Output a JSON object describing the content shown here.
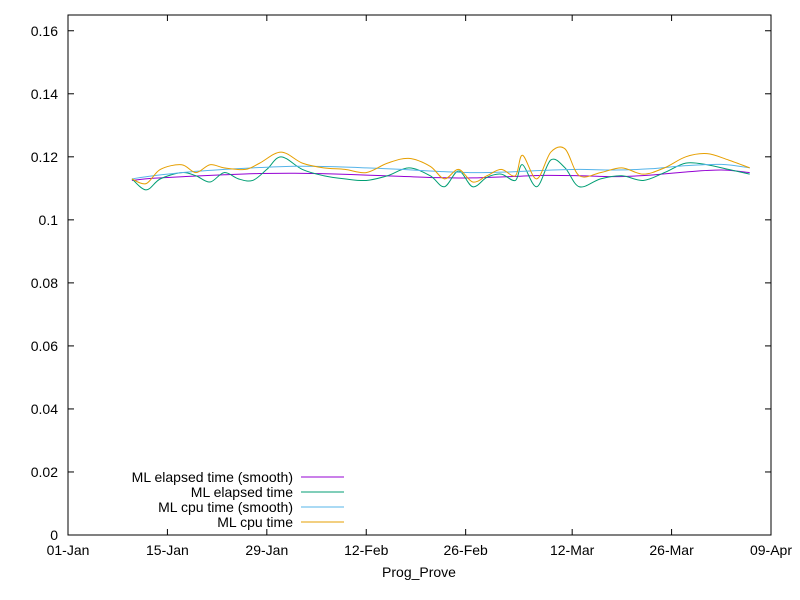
{
  "chart_data": {
    "type": "line",
    "xlabel": "Prog_Prove",
    "ylabel": "",
    "ylim": [
      0,
      0.165
    ],
    "y_ticks": [
      0,
      0.02,
      0.04,
      0.06,
      0.08,
      0.1,
      0.12,
      0.14,
      0.16
    ],
    "y_tick_labels": [
      "0",
      "0.02",
      "0.04",
      "0.06",
      "0.08",
      "0.1",
      "0.12",
      "0.14",
      "0.16"
    ],
    "xlim": [
      "2024-01-01",
      "2024-04-09"
    ],
    "x_ticks": [
      "2024-01-01",
      "2024-01-15",
      "2024-01-29",
      "2024-02-12",
      "2024-02-26",
      "2024-03-12",
      "2024-03-26",
      "2024-04-09"
    ],
    "x_tick_labels": [
      "01-Jan",
      "15-Jan",
      "29-Jan",
      "12-Feb",
      "26-Feb",
      "12-Mar",
      "26-Mar",
      "09-Apr"
    ],
    "grid": false,
    "legend_position": "bottom-left",
    "series": [
      {
        "name": "ML elapsed time (smooth)",
        "color": "#9400d3",
        "x": [
          "2024-01-10",
          "2024-01-13",
          "2024-01-18",
          "2024-01-23",
          "2024-01-28",
          "2024-02-02",
          "2024-02-07",
          "2024-02-12",
          "2024-02-17",
          "2024-02-22",
          "2024-02-27",
          "2024-03-03",
          "2024-03-08",
          "2024-03-13",
          "2024-03-18",
          "2024-03-23",
          "2024-03-28",
          "2024-04-02",
          "2024-04-06"
        ],
        "y": [
          0.1125,
          0.1132,
          0.1138,
          0.1143,
          0.1147,
          0.1148,
          0.1146,
          0.1142,
          0.1138,
          0.1134,
          0.1133,
          0.1137,
          0.1141,
          0.114,
          0.1137,
          0.1142,
          0.1152,
          0.1158,
          0.115
        ]
      },
      {
        "name": "ML elapsed time",
        "color": "#009e73",
        "x": [
          "2024-01-10",
          "2024-01-12",
          "2024-01-14",
          "2024-01-17",
          "2024-01-19",
          "2024-01-21",
          "2024-01-23",
          "2024-01-25",
          "2024-01-27",
          "2024-01-29",
          "2024-01-31",
          "2024-02-03",
          "2024-02-06",
          "2024-02-09",
          "2024-02-12",
          "2024-02-15",
          "2024-02-18",
          "2024-02-21",
          "2024-02-23",
          "2024-02-25",
          "2024-02-27",
          "2024-02-29",
          "2024-03-02",
          "2024-03-04",
          "2024-03-05",
          "2024-03-07",
          "2024-03-09",
          "2024-03-11",
          "2024-03-13",
          "2024-03-16",
          "2024-03-19",
          "2024-03-22",
          "2024-03-25",
          "2024-03-28",
          "2024-03-31",
          "2024-04-03",
          "2024-04-06"
        ],
        "y": [
          0.113,
          0.1095,
          0.113,
          0.115,
          0.114,
          0.112,
          0.115,
          0.113,
          0.1125,
          0.116,
          0.12,
          0.116,
          0.114,
          0.113,
          0.1125,
          0.114,
          0.1165,
          0.114,
          0.1105,
          0.1155,
          0.1105,
          0.1135,
          0.1145,
          0.1125,
          0.1175,
          0.1105,
          0.119,
          0.1165,
          0.1105,
          0.113,
          0.114,
          0.1125,
          0.115,
          0.118,
          0.1175,
          0.116,
          0.1145
        ]
      },
      {
        "name": "ML cpu time (smooth)",
        "color": "#56b4e9",
        "x": [
          "2024-01-10",
          "2024-01-13",
          "2024-01-18",
          "2024-01-23",
          "2024-01-28",
          "2024-02-02",
          "2024-02-07",
          "2024-02-12",
          "2024-02-17",
          "2024-02-22",
          "2024-02-27",
          "2024-03-03",
          "2024-03-08",
          "2024-03-13",
          "2024-03-18",
          "2024-03-23",
          "2024-03-28",
          "2024-04-02",
          "2024-04-06"
        ],
        "y": [
          0.113,
          0.114,
          0.1152,
          0.116,
          0.1166,
          0.117,
          0.1169,
          0.1165,
          0.116,
          0.1154,
          0.115,
          0.1152,
          0.1157,
          0.116,
          0.1158,
          0.1162,
          0.1172,
          0.1176,
          0.1165
        ]
      },
      {
        "name": "ML cpu time",
        "color": "#e69f00",
        "x": [
          "2024-01-10",
          "2024-01-12",
          "2024-01-14",
          "2024-01-17",
          "2024-01-19",
          "2024-01-21",
          "2024-01-23",
          "2024-01-26",
          "2024-01-28",
          "2024-01-31",
          "2024-02-03",
          "2024-02-06",
          "2024-02-09",
          "2024-02-12",
          "2024-02-15",
          "2024-02-18",
          "2024-02-21",
          "2024-02-23",
          "2024-02-25",
          "2024-02-27",
          "2024-02-29",
          "2024-03-02",
          "2024-03-04",
          "2024-03-05",
          "2024-03-07",
          "2024-03-09",
          "2024-03-11",
          "2024-03-13",
          "2024-03-16",
          "2024-03-19",
          "2024-03-22",
          "2024-03-25",
          "2024-03-28",
          "2024-03-31",
          "2024-04-03",
          "2024-04-06"
        ],
        "y": [
          0.113,
          0.1115,
          0.116,
          0.1175,
          0.115,
          0.1175,
          0.1165,
          0.116,
          0.118,
          0.1215,
          0.118,
          0.1165,
          0.116,
          0.115,
          0.118,
          0.1195,
          0.117,
          0.113,
          0.116,
          0.112,
          0.114,
          0.116,
          0.114,
          0.1205,
          0.113,
          0.1215,
          0.1225,
          0.114,
          0.115,
          0.1165,
          0.1145,
          0.1165,
          0.12,
          0.121,
          0.119,
          0.1165
        ]
      }
    ]
  }
}
